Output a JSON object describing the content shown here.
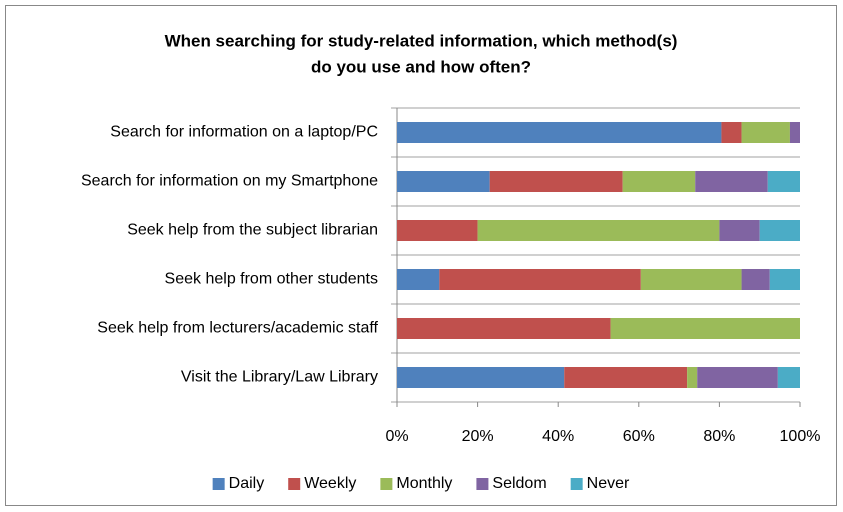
{
  "chart_data": {
    "type": "stacked_barh",
    "title": "When searching for study-related information, which method(s) do you use and how often?",
    "title_lines": [
      "When searching for study-related information, which method(s)",
      "do you use and how often?"
    ],
    "categories": [
      "Search for information on a laptop/PC",
      "Search for information on my Smartphone",
      "Seek help from the subject librarian",
      "Seek help from other students",
      "Seek help from lecturers/academic staff",
      "Visit the Library/Law Library"
    ],
    "series": [
      {
        "name": "Daily",
        "color": "#4f81bd",
        "values": [
          80.5,
          23,
          0,
          10.5,
          0,
          41.5
        ]
      },
      {
        "name": "Weekly",
        "color": "#c0504d",
        "values": [
          5,
          33,
          20,
          50,
          53,
          30.5
        ]
      },
      {
        "name": "Monthly",
        "color": "#9bbb59",
        "values": [
          12,
          18,
          60,
          25,
          47,
          2.5
        ]
      },
      {
        "name": "Seldom",
        "color": "#8064a2",
        "values": [
          2.5,
          18,
          10,
          7,
          0,
          20
        ]
      },
      {
        "name": "Never",
        "color": "#4bacc6",
        "values": [
          0,
          8,
          10,
          7.5,
          0,
          5.5
        ]
      }
    ],
    "xlim": [
      0,
      100
    ],
    "xticks": [
      {
        "value": 0,
        "label": "0%"
      },
      {
        "value": 20,
        "label": "20%"
      },
      {
        "value": 40,
        "label": "40%"
      },
      {
        "value": 60,
        "label": "60%"
      },
      {
        "value": 80,
        "label": "80%"
      },
      {
        "value": 100,
        "label": "100%"
      }
    ],
    "legend": "bottom"
  }
}
